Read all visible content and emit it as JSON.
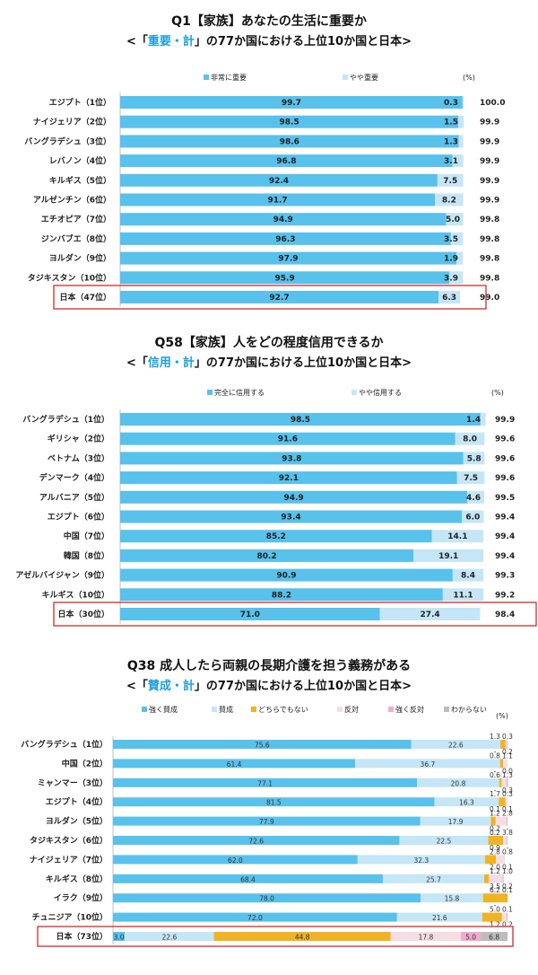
{
  "chart_data": [
    {
      "type": "bar",
      "stacked": true,
      "orientation": "horizontal",
      "title": "Q1【家族】あなたの生活に重要か",
      "subtitle_pre": "<「",
      "subtitle_hl": "重要・計",
      "subtitle_post": "」の77か国における上位10か国と日本>",
      "unit": "(%)",
      "xlim": [
        0,
        100
      ],
      "categories": [
        "エジプト（1位）",
        "ナイジェリア（2位）",
        "バングラデシュ（3位）",
        "レバノン（4位）",
        "キルギス（5位）",
        "アルゼンチン（6位）",
        "エチオピア（7位）",
        "ジンバブエ（8位）",
        "ヨルダン（9位）",
        "タジキスタン（10位）",
        "日本（47位）"
      ],
      "series": [
        {
          "name": "非常に重要",
          "color": "#58c1ec",
          "values": [
            99.7,
            98.5,
            98.6,
            96.8,
            92.4,
            91.7,
            94.9,
            96.3,
            97.9,
            95.9,
            92.7
          ]
        },
        {
          "name": "やや重要",
          "color": "#c5e6f6",
          "values": [
            0.3,
            1.5,
            1.3,
            3.1,
            7.5,
            8.2,
            5.0,
            3.5,
            1.9,
            3.9,
            6.3
          ]
        }
      ],
      "totals": [
        "100.0",
        "99.9",
        "99.9",
        "99.9",
        "99.9",
        "99.9",
        "99.8",
        "99.8",
        "99.8",
        "99.8",
        "99.0"
      ],
      "highlight_index": 10
    },
    {
      "type": "bar",
      "stacked": true,
      "orientation": "horizontal",
      "title": "Q58【家族】人をどの程度信用できるか",
      "subtitle_pre": "<「",
      "subtitle_hl": "信用・計",
      "subtitle_post": "」の77か国における上位10か国と日本>",
      "unit": "(%)",
      "xlim": [
        0,
        100
      ],
      "categories": [
        "バングラデシュ（1位）",
        "ギリシャ（2位）",
        "ベトナム（3位）",
        "デンマーク（4位）",
        "アルバニア（5位）",
        "エジプト（6位）",
        "中国（7位）",
        "韓国（8位）",
        "アゼルバイジャン（9位）",
        "キルギス（10位）",
        "日本（30位）"
      ],
      "series": [
        {
          "name": "完全に信用する",
          "color": "#58c1ec",
          "values": [
            98.5,
            91.6,
            93.8,
            92.1,
            94.9,
            93.4,
            85.2,
            80.2,
            90.9,
            88.2,
            71.0
          ]
        },
        {
          "name": "やや信用する",
          "color": "#c5e6f6",
          "values": [
            1.4,
            8.0,
            5.8,
            7.5,
            4.6,
            6.0,
            14.1,
            19.1,
            8.4,
            11.1,
            27.4
          ]
        }
      ],
      "totals": [
        "99.9",
        "99.6",
        "99.6",
        "99.6",
        "99.5",
        "99.4",
        "99.4",
        "99.4",
        "99.3",
        "99.2",
        "98.4"
      ],
      "highlight_index": 10
    },
    {
      "type": "bar",
      "stacked": true,
      "orientation": "horizontal",
      "title": "Q38 成人したら両親の長期介護を担う義務がある",
      "subtitle_pre": "<「",
      "subtitle_hl": "賛成・計",
      "subtitle_post": "」の77か国における上位10か国と日本>",
      "unit": "(%)",
      "xlim": [
        0,
        100
      ],
      "categories": [
        "バングラデシュ（1位）",
        "中国（2位）",
        "ミャンマー（3位）",
        "エジプト（4位）",
        "ヨルダン（5位）",
        "タジキスタン（6位）",
        "ナイジェリア（7位）",
        "キルギス（8位）",
        "イラク（9位）",
        "チュニジア（10位）",
        "日本（73位）"
      ],
      "series": [
        {
          "name": "強く賛成",
          "color": "#58c1ec",
          "values": [
            75.6,
            61.4,
            77.1,
            81.5,
            77.9,
            72.6,
            62.0,
            68.4,
            78.0,
            72.0,
            3.0
          ]
        },
        {
          "name": "賛成",
          "color": "#c5e6f6",
          "values": [
            22.6,
            36.7,
            20.8,
            16.3,
            17.9,
            22.5,
            32.3,
            25.7,
            15.8,
            21.6,
            22.6
          ]
        },
        {
          "name": "どちらでもない",
          "color": "#f0b323",
          "values": [
            1.3,
            0.8,
            0.6,
            1.7,
            1.2,
            3.8,
            2.8,
            1.2,
            6.2,
            5.0,
            44.8
          ]
        },
        {
          "name": "反対",
          "color": "#f6dde4",
          "values": [
            0.3,
            1.1,
            1.3,
            0.3,
            2.8,
            0.9,
            2.0,
            3.5,
            0.1,
            1.2,
            17.8
          ]
        },
        {
          "name": "強く反対",
          "color": "#efaccd",
          "values": [
            null,
            null,
            null,
            null,
            null,
            null,
            null,
            null,
            null,
            null,
            5.0
          ]
        },
        {
          "name": "わからない",
          "color": "#bdbdbd",
          "values": [
            0.2,
            null,
            0.3,
            0.1,
            0.2,
            0.2,
            0.1,
            0.2,
            null,
            0.2,
            6.8
          ]
        }
      ],
      "stack_labels": [
        [
          "75.6",
          "22.6",
          "1.3",
          "0.3",
          "-",
          "0.2"
        ],
        [
          "61.4",
          "36.7",
          "0.8",
          "1.1",
          "0.0",
          "-"
        ],
        [
          "77.1",
          "20.8",
          "0.6",
          "1.3",
          "-",
          "0.3"
        ],
        [
          "81.5",
          "16.3",
          "1.7",
          "0.3",
          "-",
          "0.1"
        ],
        [
          "77.9",
          "17.9",
          "1.2",
          "2.8",
          "-",
          "0.2"
        ],
        [
          "72.6",
          "22.5",
          "3.8",
          "0.9",
          "-",
          "0.2"
        ],
        [
          "62.0",
          "32.3",
          "2.8",
          "2.0",
          "-",
          "0.1"
        ],
        [
          "68.4",
          "25.7",
          "1.2",
          "3.5",
          "-",
          "0.2"
        ],
        [
          "78.0",
          "15.8",
          "6.2",
          "0.1",
          "-",
          "-"
        ],
        [
          "72.0",
          "21.6",
          "5.0",
          "1.2",
          "-",
          "0.2"
        ],
        [
          "3.0",
          "22.6",
          "44.8",
          "17.8",
          "5.0",
          "6.8"
        ]
      ],
      "small_annotations": [
        [
          "1.3",
          "0.3",
          "-",
          "0.2"
        ],
        [
          "0.8",
          "1.1",
          "-",
          "0.0"
        ],
        [
          "0.6",
          "1.3",
          "-",
          "0.3"
        ],
        [
          "1.7",
          "0.3",
          "0.1",
          "0.1"
        ],
        [
          "1.2",
          "2.8",
          "0.2",
          "-"
        ],
        [
          "0.2",
          "3.8",
          "0.9",
          "-"
        ],
        [
          "2.8",
          "0.8",
          "2.0",
          "0.1"
        ],
        [
          "1.2",
          "1.0",
          "3.5",
          "0.2"
        ],
        [
          "6.2",
          "0.1",
          "-",
          ""
        ],
        [
          "5.0",
          "0.1",
          "1.2",
          "0.2"
        ]
      ],
      "highlight_index": 10
    }
  ]
}
